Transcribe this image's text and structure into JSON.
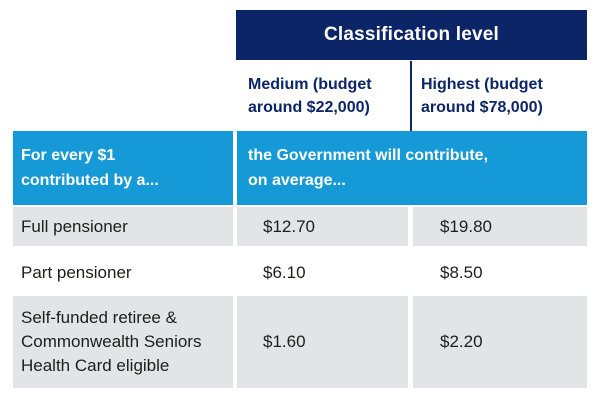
{
  "colors": {
    "navy": "#0c2567",
    "cyan": "#1699d7",
    "gray": "#e3e4e5",
    "ink": "#1d1d1b"
  },
  "table": {
    "title": "Classification level",
    "column_headers": [
      "Medium (budget\naround $22,000)",
      "Highest (budget\naround $78,000)"
    ],
    "subheader": {
      "row_label": "For every $1\ncontributed by a...",
      "value_label": "the Government will contribute,\non average..."
    },
    "rows": [
      {
        "label": "Full pensioner",
        "medium": "$12.70",
        "highest": "$19.80"
      },
      {
        "label": "Part pensioner",
        "medium": "$6.10",
        "highest": "$8.50"
      },
      {
        "label": "Self-funded retiree &\nCommonwealth Seniors\nHealth Card eligible",
        "medium": "$1.60",
        "highest": "$2.20"
      }
    ]
  }
}
